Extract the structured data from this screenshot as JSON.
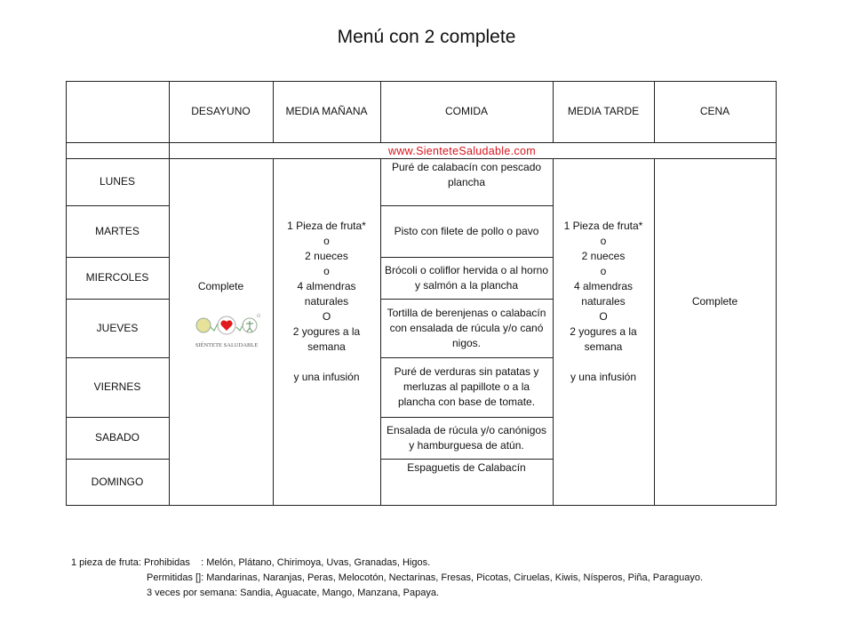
{
  "title": "Menú con 2 complete",
  "watermark": "www.SienteteSaludable.com",
  "headers": [
    "",
    "DESAYUNO",
    "MEDIA MAÑANA",
    "COMIDA",
    "MEDIA TARDE",
    "CENA"
  ],
  "days": [
    "LUNES",
    "MARTES",
    "MIERCOLES",
    "JUEVES",
    "VIERNES",
    "SABADO",
    "DOMINGO"
  ],
  "desayuno": "Complete",
  "logo_text": "SIÉNTETE SALUDABLE",
  "media_manana": "1 Pieza de fruta*\no\n2 nueces\no\n4 almendras\nnaturales\nO\n2 yogures a la\nsemana\n\ny una infusión",
  "comida": [
    "Puré de calabacín  con pescado plancha",
    "Pisto con filete de pollo o pavo",
    "Brócoli o coliflor hervida o al horno y salmón  a la plancha",
    "Tortilla de berenjenas o calabacín con ensalada de rúcula y/o canó nigos.",
    "Puré de verduras sin patatas  y merluzas al papillote o a la plancha con base de tomate.",
    "Ensalada de rúcula y/o canónigos y hamburguesa de atún.",
    "Espaguetis de Calabacín"
  ],
  "media_tarde": "1 Pieza de fruta*\no\n2 nueces\no\n4 almendras\nnaturales\nO\n2 yogures a la\nsemana\n\ny una infusión",
  "cena": "Complete",
  "footnotes": [
    "1 pieza de fruta: Prohibidas    : Melón, Plátano, Chirimoya, Uvas, Granadas, Higos.",
    "Permitidas []: Mandarinas, Naranjas, Peras, Melocotón, Nectarinas, Fresas, Picotas, Ciruelas, Kiwis, Nísperos, Piña, Paraguayo.",
    "3 veces por semana: Sandia, Aguacate, Mango, Manzana, Papaya."
  ]
}
